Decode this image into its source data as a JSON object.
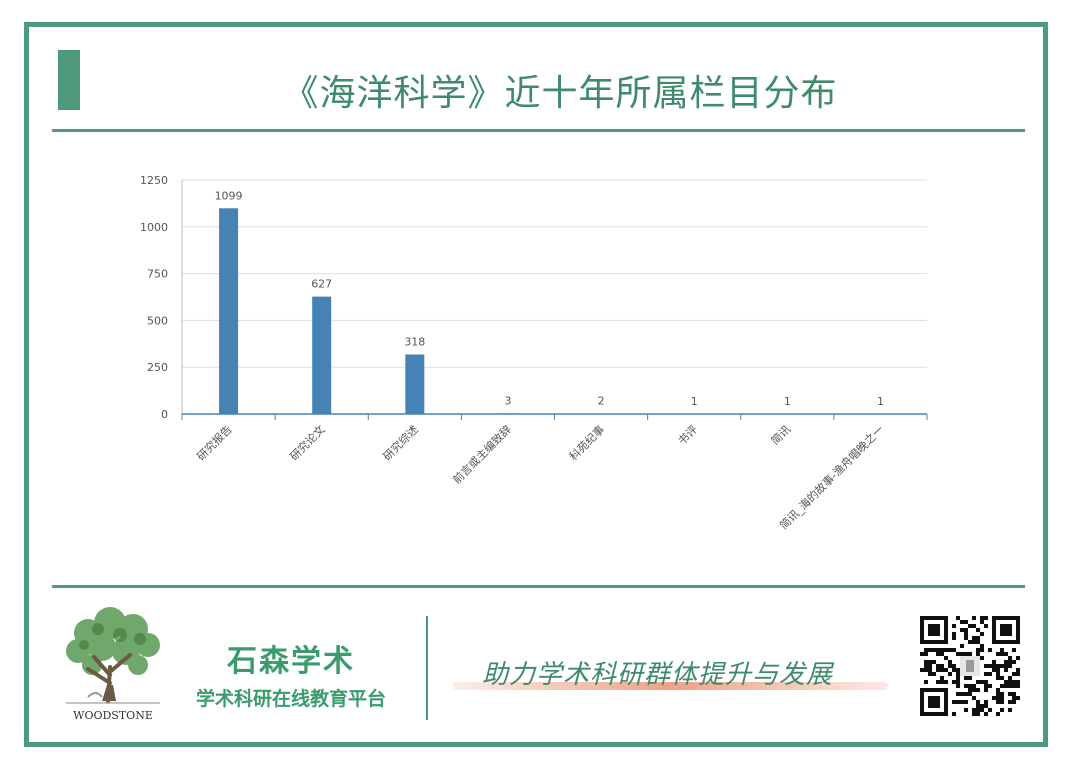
{
  "title": "《海洋科学》近十年所属栏目分布",
  "chart_data": {
    "type": "bar",
    "categories": [
      "研究报告",
      "研究论文",
      "研究综述",
      "前言或主编致辞",
      "科苑纪事",
      "书评",
      "简讯",
      "简讯_海的故事-渔舟唱晚之一"
    ],
    "values": [
      1099,
      627,
      318,
      3,
      2,
      1,
      1,
      1
    ],
    "yticks": [
      0,
      250,
      500,
      750,
      1000,
      1250
    ],
    "ylim": [
      0,
      1250
    ],
    "xlabel": "",
    "ylabel": "",
    "grid": true,
    "bar_color": "#4682b4",
    "data_labels": true
  },
  "footer": {
    "logo_text": "WOODSTONE",
    "brand_name": "石森学术",
    "brand_subtitle": "学术科研在线教育平台",
    "slogan": "助力学术科研群体提升与发展"
  },
  "colors": {
    "accent": "#4e9a7b",
    "brand": "#3a9b6c"
  }
}
